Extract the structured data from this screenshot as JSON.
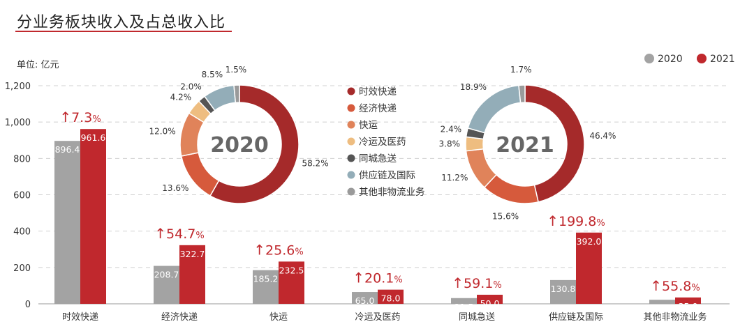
{
  "title": "分业务板块收入及占总收入比",
  "unit": "单位: 亿元",
  "chart_data": [
    {
      "type": "bar",
      "categories": [
        "时效快递",
        "经济快递",
        "快运",
        "冷运及医药",
        "同城急送",
        "供应链及国际",
        "其他非物流业务"
      ],
      "series": [
        {
          "name": "2020",
          "color": "#a3a3a3",
          "values": [
            896.4,
            208.7,
            185.2,
            65.0,
            31.5,
            130.8,
            22.4
          ]
        },
        {
          "name": "2021",
          "color": "#c0282d",
          "values": [
            961.6,
            322.7,
            232.5,
            78.0,
            50.0,
            392.0,
            35.0
          ]
        }
      ],
      "value_labels": {
        "2020": [
          "896.4",
          "208.7",
          "185.2",
          "65.0",
          "31.5",
          "130.8",
          "22.4"
        ],
        "2021": [
          "961.6",
          "322.7",
          "232.5",
          "78.0",
          "50.0",
          "392.0",
          "35.0"
        ]
      },
      "growth_labels": [
        "7.3",
        "54.7",
        "25.6",
        "20.1",
        "59.1",
        "199.8",
        "55.8"
      ],
      "growth_arrow": "↑",
      "growth_unit": "%",
      "ylim": [
        0,
        1200
      ],
      "yticks": [
        "0",
        "200",
        "400",
        "600",
        "800",
        "1,000",
        "1,200"
      ],
      "ytick_values": [
        0,
        200,
        400,
        600,
        800,
        1000,
        1200
      ],
      "grid": "dashed horizontal",
      "legend_position": "top-right"
    },
    {
      "type": "pie",
      "center_label": "2020",
      "categories": [
        "时效快递",
        "经济快递",
        "快运",
        "冷运及医药",
        "同城急送",
        "供应链及国际",
        "其他非物流业务"
      ],
      "values": [
        58.2,
        13.6,
        12.0,
        4.2,
        2.0,
        8.5,
        1.5
      ],
      "labels": [
        "58.2%",
        "13.6%",
        "12.0%",
        "4.2%",
        "2.0%",
        "8.5%",
        "1.5%"
      ]
    },
    {
      "type": "pie",
      "center_label": "2021",
      "categories": [
        "时效快递",
        "经济快递",
        "快运",
        "冷运及医药",
        "同城急送",
        "供应链及国际",
        "其他非物流业务"
      ],
      "values": [
        46.4,
        15.6,
        11.2,
        3.8,
        2.4,
        18.9,
        1.7
      ],
      "labels": [
        "46.4%",
        "15.6%",
        "11.2%",
        "3.8%",
        "2.4%",
        "18.9%",
        "1.7%"
      ]
    }
  ],
  "donut_legend": {
    "items": [
      "时效快递",
      "经济快递",
      "快运",
      "冷运及医药",
      "同城急送",
      "供应链及国际",
      "其他非物流业务"
    ],
    "colors": [
      "#a52a2a",
      "#d65a3c",
      "#e0835a",
      "#eebd80",
      "#555555",
      "#93adb8",
      "#9a9a9a"
    ]
  }
}
